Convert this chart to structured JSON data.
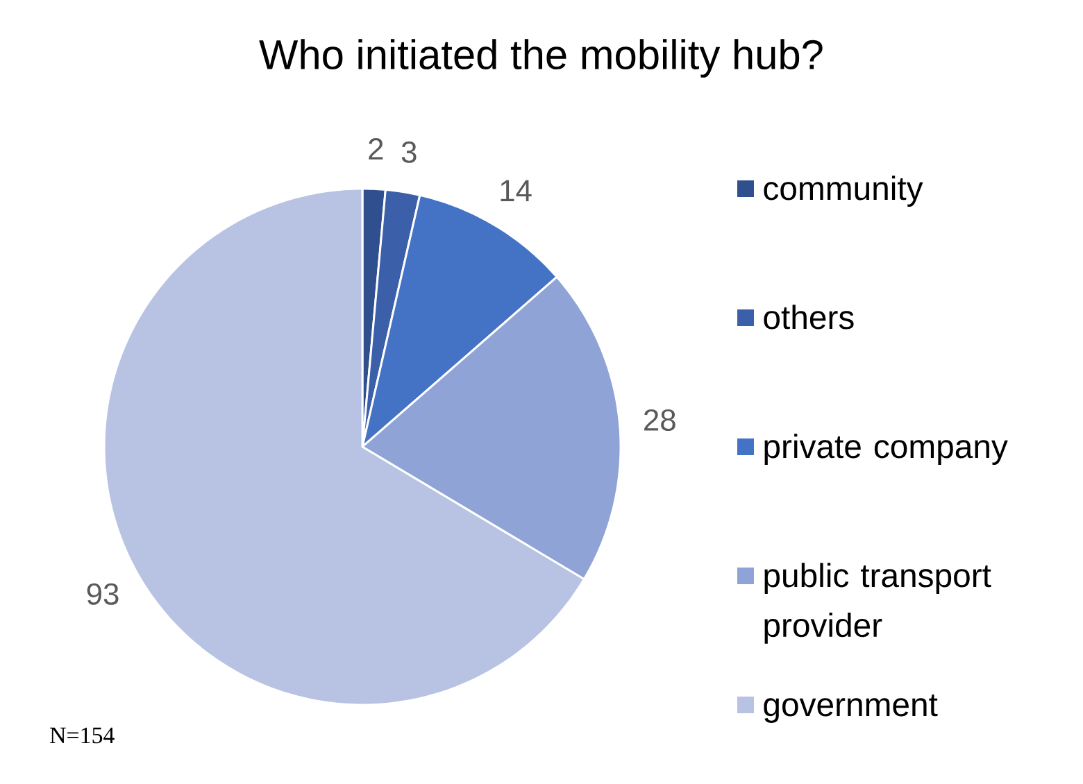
{
  "chart_data": {
    "type": "pie",
    "title": "Who initiated the mobility hub?",
    "categories": [
      "community",
      "others",
      "private company",
      "public transport provider",
      "government"
    ],
    "values": [
      2,
      3,
      14,
      28,
      93
    ],
    "colors": [
      "#2f4f8f",
      "#3b5fa9",
      "#4472c4",
      "#8fa3d6",
      "#b8c3e3"
    ],
    "data_labels": true,
    "legend": "right",
    "annotations": [
      "N=154"
    ]
  }
}
